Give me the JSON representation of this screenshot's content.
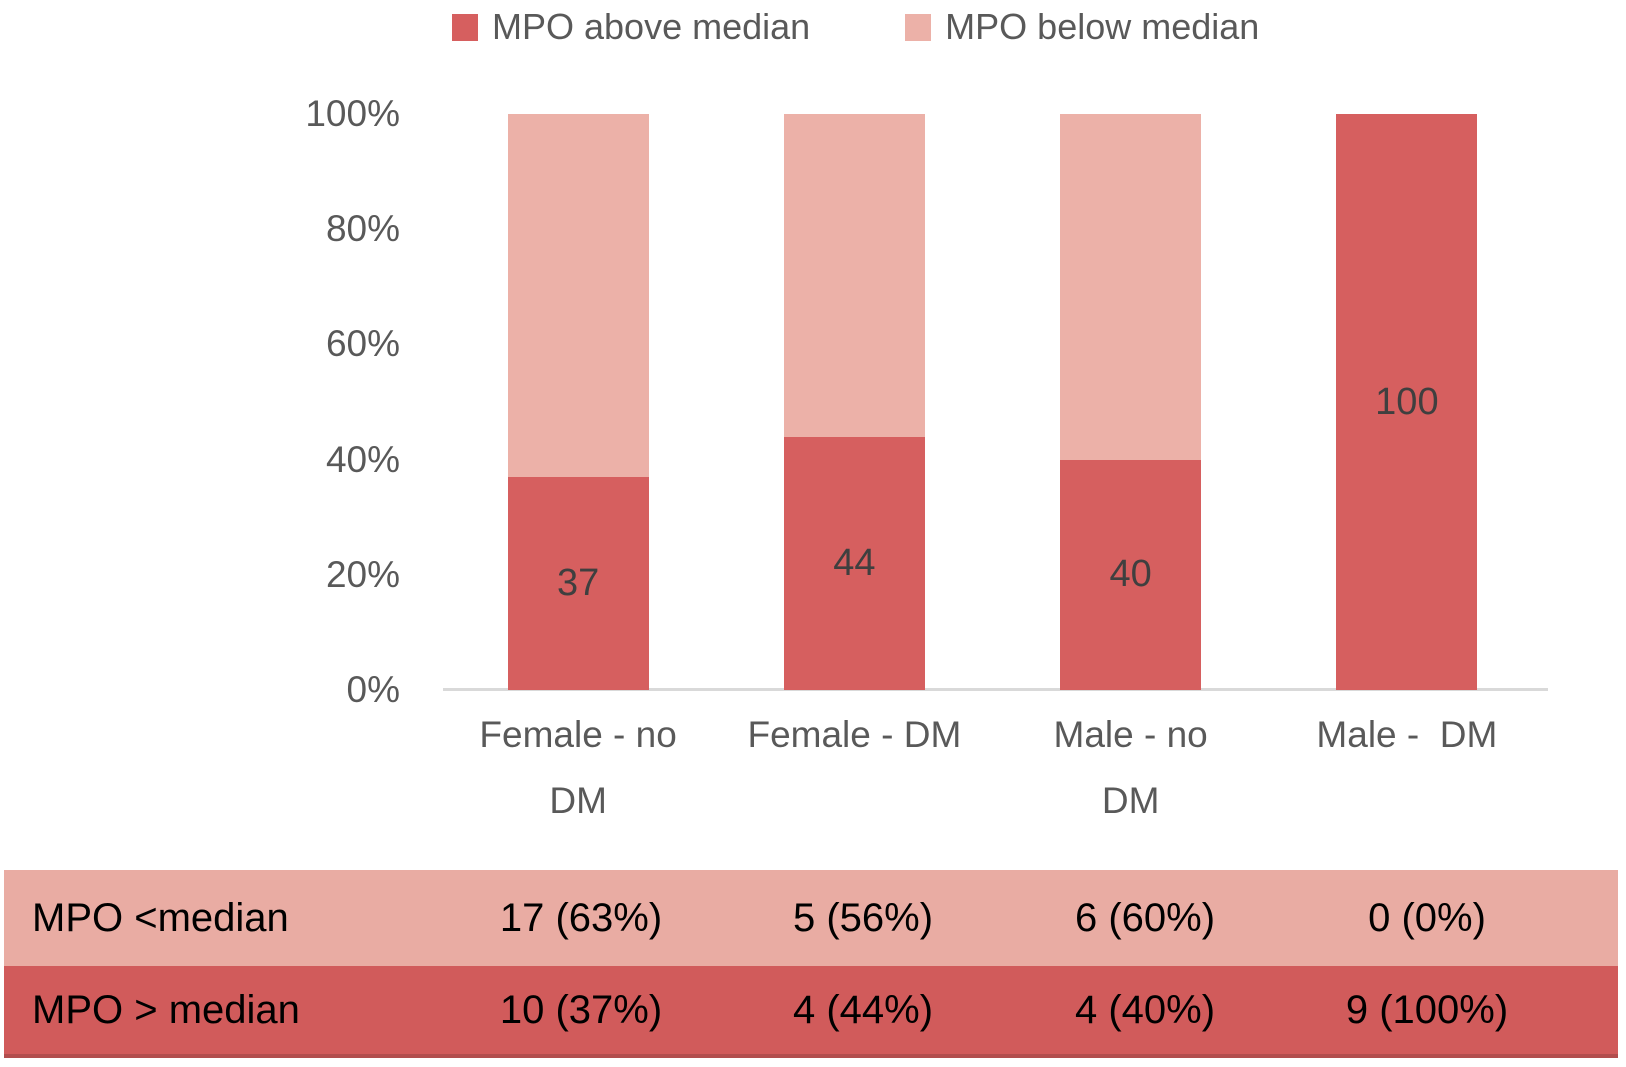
{
  "legend": {
    "above_label": "MPO above median",
    "below_label": "MPO below median"
  },
  "colors": {
    "above": "#D65F5F",
    "below": "#ECB1A8",
    "table_above_bg": "#D15B5B",
    "table_below_bg": "#E9ACA3",
    "table_edge": "#B24E4E",
    "axis_line": "#D9D9D9",
    "axis_text": "#595959",
    "bar_label_text": "#3F3F3F",
    "table_text": "#000000"
  },
  "chart_data": {
    "type": "bar",
    "stacked": true,
    "percent_axis": true,
    "categories": [
      "Female - no\nDM",
      "Female - DM",
      "Male - no\nDM",
      "Male -  DM"
    ],
    "series": [
      {
        "name": "MPO above median",
        "color": "#D65F5F",
        "values": [
          37,
          44,
          40,
          100
        ]
      },
      {
        "name": "MPO below median",
        "color": "#ECB1A8",
        "values": [
          63,
          56,
          60,
          0
        ]
      }
    ],
    "bar_labels": [
      "37",
      "44",
      "40",
      "100"
    ],
    "y_ticks": [
      "100%",
      "80%",
      "60%",
      "40%",
      "20%",
      "0%"
    ],
    "ylim": [
      0,
      100
    ],
    "grid": false,
    "legend_position": "top"
  },
  "table": {
    "rows": [
      {
        "key": "below",
        "label": "MPO <median",
        "values": [
          "17 (63%)",
          "5 (56%)",
          "6 (60%)",
          "0 (0%)"
        ]
      },
      {
        "key": "above",
        "label": "MPO > median",
        "values": [
          "10 (37%)",
          "4 (44%)",
          "4 (40%)",
          "9 (100%)"
        ]
      }
    ]
  }
}
